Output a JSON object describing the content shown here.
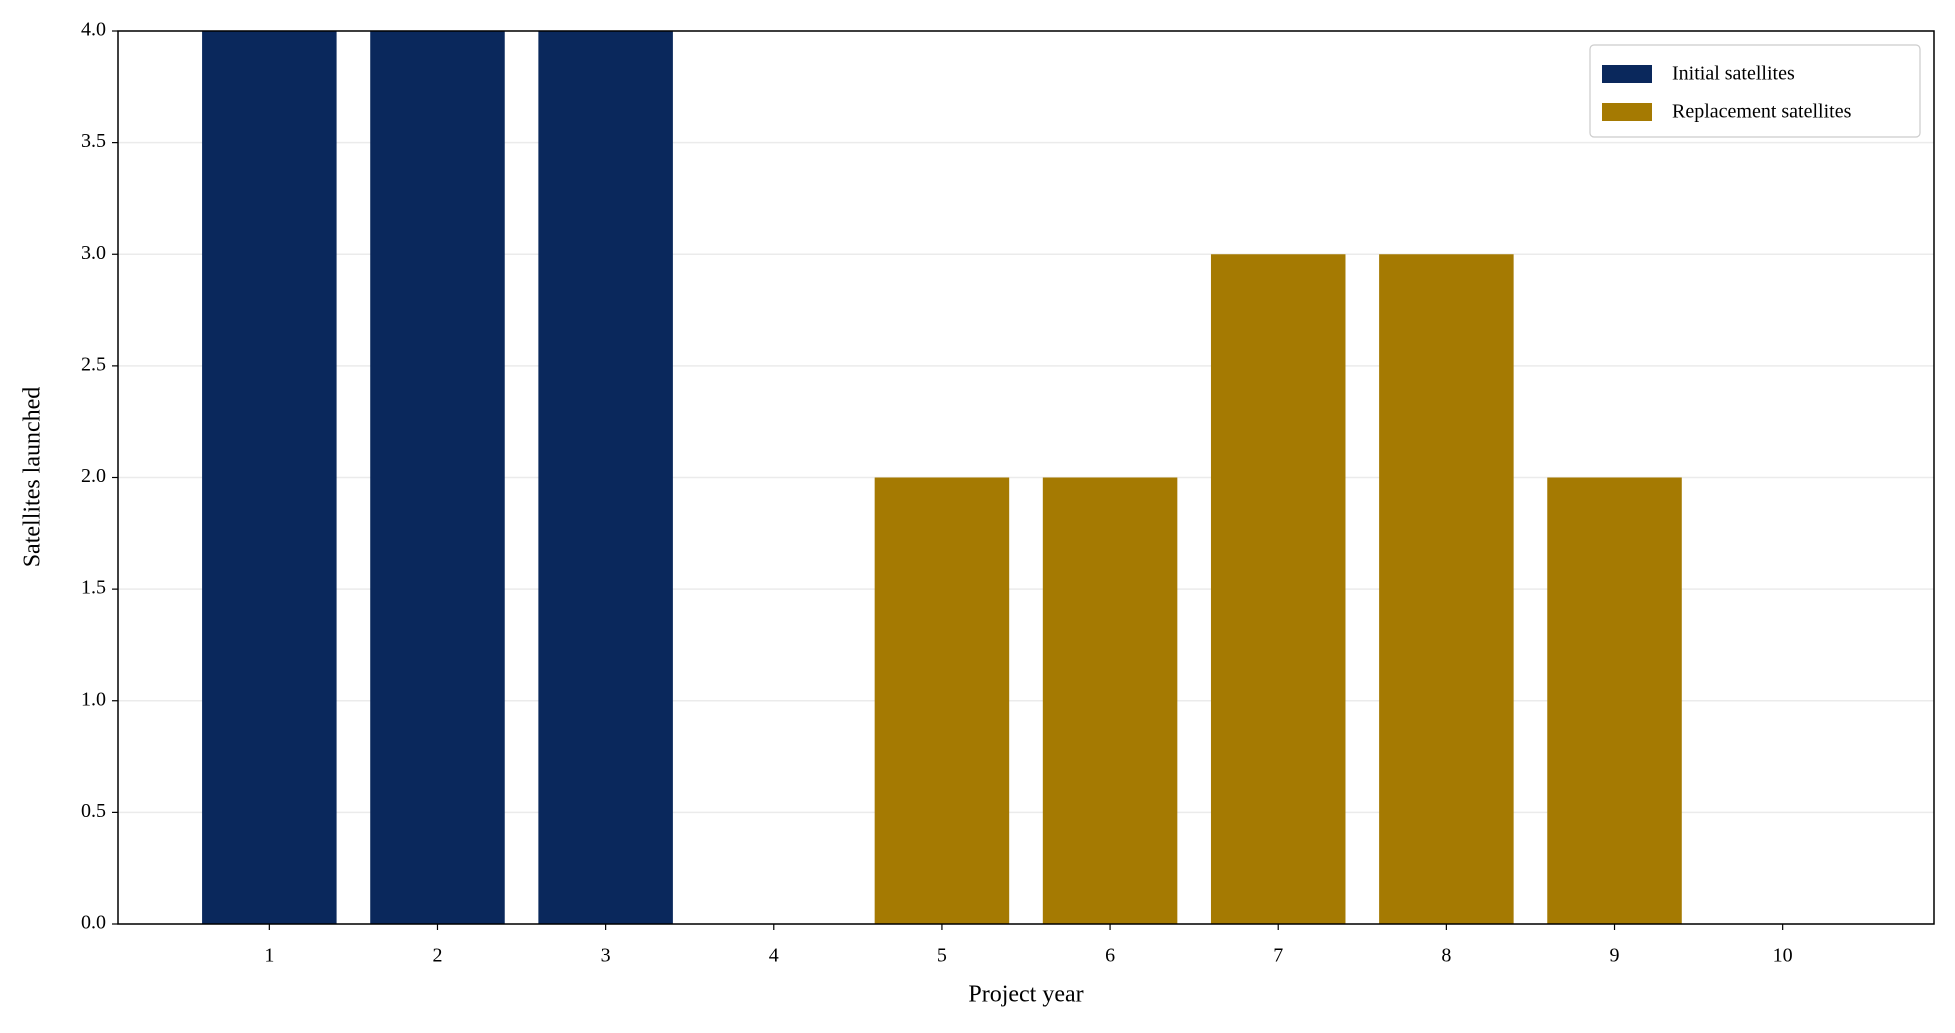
{
  "chart_data": {
    "type": "bar",
    "stacked": true,
    "xlabel": "Project year",
    "ylabel": "Satellites launched",
    "categories": [
      "1",
      "2",
      "3",
      "4",
      "5",
      "6",
      "7",
      "8",
      "9",
      "10"
    ],
    "series": [
      {
        "name": "Initial satellites",
        "color": "#0a285c",
        "values": [
          4,
          4,
          4,
          0,
          0,
          0,
          0,
          0,
          0,
          0
        ]
      },
      {
        "name": "Replacement satellites",
        "color": "#a57a02",
        "values": [
          0,
          0,
          0,
          0,
          2,
          2,
          3,
          3,
          2,
          0
        ]
      }
    ],
    "ylim": [
      0,
      4
    ],
    "yticks": [
      {
        "value": 0,
        "label": "0.0"
      },
      0.5,
      {
        "value": 1,
        "label": "1.0"
      },
      1.5,
      {
        "value": 2,
        "label": "2.0"
      },
      2.5,
      {
        "value": 3,
        "label": "3.0"
      },
      3.5,
      {
        "value": 4,
        "label": "4.0"
      }
    ],
    "grid": true,
    "legend": "upper right"
  }
}
